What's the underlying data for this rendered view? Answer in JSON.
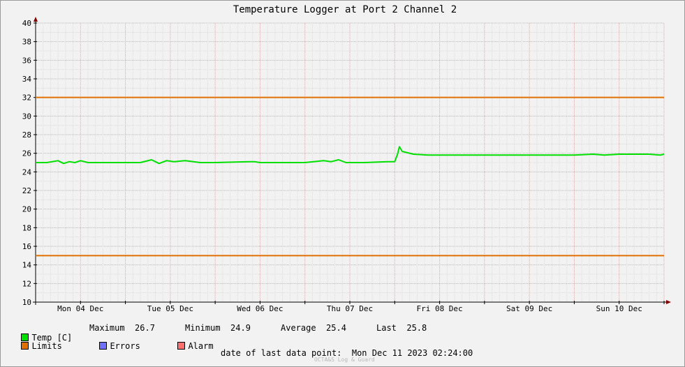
{
  "chart_data": {
    "type": "line",
    "title": "Temperature Logger at Port 2 Channel 2",
    "ylim": [
      10,
      40
    ],
    "yticks": [
      10,
      12,
      14,
      16,
      18,
      20,
      22,
      24,
      26,
      28,
      30,
      32,
      34,
      36,
      38,
      40
    ],
    "x_range_days": [
      "2023-12-04",
      "2023-12-11"
    ],
    "xtick_labels": [
      "Mon 04 Dec",
      "Tue 05 Dec",
      "Wed 06 Dec",
      "Thu 07 Dec",
      "Fri 08 Dec",
      "Sat 09 Dec",
      "Sun 10 Dec"
    ],
    "grid": true,
    "series": [
      {
        "name": "Temp [C]",
        "color": "#00e000",
        "points": [
          [
            "2023-12-04 00:00",
            25.0
          ],
          [
            "2023-12-04 03:00",
            25.0
          ],
          [
            "2023-12-04 06:00",
            25.2
          ],
          [
            "2023-12-04 07:30",
            24.9
          ],
          [
            "2023-12-04 09:00",
            25.1
          ],
          [
            "2023-12-04 10:30",
            25.0
          ],
          [
            "2023-12-04 12:00",
            25.2
          ],
          [
            "2023-12-04 14:00",
            25.0
          ],
          [
            "2023-12-04 20:00",
            25.0
          ],
          [
            "2023-12-05 00:00",
            25.0
          ],
          [
            "2023-12-05 04:00",
            25.0
          ],
          [
            "2023-12-05 07:00",
            25.3
          ],
          [
            "2023-12-05 09:00",
            24.9
          ],
          [
            "2023-12-05 11:00",
            25.2
          ],
          [
            "2023-12-05 13:00",
            25.1
          ],
          [
            "2023-12-05 16:00",
            25.2
          ],
          [
            "2023-12-05 20:00",
            25.0
          ],
          [
            "2023-12-06 00:00",
            25.0
          ],
          [
            "2023-12-06 09:00",
            25.1
          ],
          [
            "2023-12-06 10:30",
            25.1
          ],
          [
            "2023-12-06 12:00",
            25.0
          ],
          [
            "2023-12-06 18:00",
            25.0
          ],
          [
            "2023-12-07 00:00",
            25.0
          ],
          [
            "2023-12-07 05:00",
            25.2
          ],
          [
            "2023-12-07 07:00",
            25.1
          ],
          [
            "2023-12-07 09:00",
            25.3
          ],
          [
            "2023-12-07 11:00",
            25.0
          ],
          [
            "2023-12-07 16:00",
            25.0
          ],
          [
            "2023-12-07 22:00",
            25.1
          ],
          [
            "2023-12-08 00:00",
            25.1
          ],
          [
            "2023-12-08 00:45",
            25.9
          ],
          [
            "2023-12-08 01:15",
            26.7
          ],
          [
            "2023-12-08 02:00",
            26.2
          ],
          [
            "2023-12-08 05:00",
            25.9
          ],
          [
            "2023-12-08 09:00",
            25.8
          ],
          [
            "2023-12-09 00:00",
            25.8
          ],
          [
            "2023-12-10 00:00",
            25.8
          ],
          [
            "2023-12-10 05:00",
            25.9
          ],
          [
            "2023-12-10 08:00",
            25.8
          ],
          [
            "2023-12-10 12:00",
            25.9
          ],
          [
            "2023-12-10 20:00",
            25.9
          ],
          [
            "2023-12-10 23:00",
            25.8
          ],
          [
            "2023-12-11 00:00",
            25.9
          ]
        ]
      },
      {
        "name": "Limits",
        "color": "#e07000",
        "levels": [
          32,
          15
        ]
      }
    ]
  },
  "legend": {
    "temp_label": "Temp [C]",
    "max_label": "Maximum",
    "max_value": "26.7",
    "min_label": "Minimum",
    "min_value": "24.9",
    "avg_label": "Average",
    "avg_value": "25.4",
    "last_label": "Last",
    "last_value": "25.8",
    "limits_label": "Limits",
    "errors_label": "Errors",
    "alarm_label": "Alarm",
    "colors": {
      "temp": "#00e000",
      "limits": "#e07000",
      "errors": "#7070ff",
      "alarm": "#ff7070"
    }
  },
  "footer": {
    "last_point_label": "date of last data point:",
    "last_point_value": "Mon Dec 11 2023 02:24:00",
    "watermark": "OCTA&S Log & Guard"
  }
}
